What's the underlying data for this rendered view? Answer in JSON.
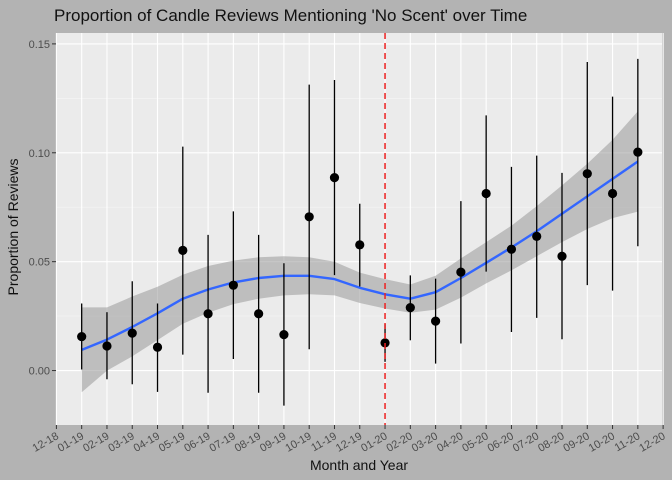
{
  "chart_data": {
    "type": "scatter",
    "title": "Proportion of Candle Reviews Mentioning 'No Scent' over Time",
    "xlabel": "Month and Year",
    "ylabel": "Proportion of Reviews",
    "x_ticks": [
      "12-18",
      "01-19",
      "02-19",
      "03-19",
      "04-19",
      "05-19",
      "06-19",
      "07-19",
      "08-19",
      "09-19",
      "10-19",
      "11-19",
      "12-19",
      "01-20",
      "02-20",
      "03-20",
      "04-20",
      "05-20",
      "06-20",
      "07-20",
      "08-20",
      "09-20",
      "10-20",
      "11-20",
      "12-20"
    ],
    "y_ticks": [
      "0.00",
      "0.05",
      "0.10",
      "0.15"
    ],
    "ylim": [
      -0.025,
      0.155
    ],
    "grid": true,
    "legend": "none",
    "colors": {
      "points": "#000000",
      "smooth_line": "#3366ff",
      "ribbon": "#999999",
      "vline": "#ee2222",
      "panel": "#ebebeb"
    },
    "points": [
      {
        "x": "01-19",
        "y": 0.0156,
        "lo": 0.0005,
        "hi": 0.0308
      },
      {
        "x": "02-19",
        "y": 0.0113,
        "lo": -0.004,
        "hi": 0.0268
      },
      {
        "x": "03-19",
        "y": 0.0172,
        "lo": -0.0063,
        "hi": 0.041
      },
      {
        "x": "04-19",
        "y": 0.0107,
        "lo": -0.0098,
        "hi": 0.0308
      },
      {
        "x": "05-19",
        "y": 0.0552,
        "lo": 0.0073,
        "hi": 0.1028
      },
      {
        "x": "06-19",
        "y": 0.0261,
        "lo": -0.0102,
        "hi": 0.0623
      },
      {
        "x": "07-19",
        "y": 0.0392,
        "lo": 0.0053,
        "hi": 0.0731
      },
      {
        "x": "08-19",
        "y": 0.0261,
        "lo": -0.0102,
        "hi": 0.0623
      },
      {
        "x": "09-19",
        "y": 0.0165,
        "lo": -0.0161,
        "hi": 0.0493
      },
      {
        "x": "10-19",
        "y": 0.0706,
        "lo": 0.0098,
        "hi": 0.1313
      },
      {
        "x": "11-19",
        "y": 0.0886,
        "lo": 0.0438,
        "hi": 0.1334
      },
      {
        "x": "12-19",
        "y": 0.0577,
        "lo": 0.0386,
        "hi": 0.0766
      },
      {
        "x": "01-20",
        "y": 0.0127,
        "lo": 0.004,
        "hi": 0.0213
      },
      {
        "x": "02-20",
        "y": 0.0289,
        "lo": 0.0139,
        "hi": 0.0437
      },
      {
        "x": "03-20",
        "y": 0.0227,
        "lo": 0.0032,
        "hi": 0.0422
      },
      {
        "x": "04-20",
        "y": 0.0452,
        "lo": 0.0124,
        "hi": 0.0778
      },
      {
        "x": "05-20",
        "y": 0.0813,
        "lo": 0.0454,
        "hi": 0.1172
      },
      {
        "x": "06-20",
        "y": 0.0557,
        "lo": 0.0177,
        "hi": 0.0935
      },
      {
        "x": "07-20",
        "y": 0.0616,
        "lo": 0.0242,
        "hi": 0.0987
      },
      {
        "x": "08-20",
        "y": 0.0525,
        "lo": 0.0144,
        "hi": 0.0908
      },
      {
        "x": "09-20",
        "y": 0.0904,
        "lo": 0.0392,
        "hi": 0.1417
      },
      {
        "x": "10-20",
        "y": 0.0813,
        "lo": 0.0367,
        "hi": 0.1258
      },
      {
        "x": "11-20",
        "y": 0.1003,
        "lo": 0.0571,
        "hi": 0.1431
      }
    ],
    "vline_x": "01-20",
    "smooth": [
      {
        "x": "01-19",
        "y": 0.0095,
        "lo": -0.01,
        "hi": 0.029
      },
      {
        "x": "02-19",
        "y": 0.0142,
        "lo": 0.0,
        "hi": 0.029
      },
      {
        "x": "03-19",
        "y": 0.02,
        "lo": 0.0065,
        "hi": 0.034
      },
      {
        "x": "04-19",
        "y": 0.0263,
        "lo": 0.014,
        "hi": 0.0385
      },
      {
        "x": "05-19",
        "y": 0.033,
        "lo": 0.0215,
        "hi": 0.044
      },
      {
        "x": "06-19",
        "y": 0.0372,
        "lo": 0.0265,
        "hi": 0.048
      },
      {
        "x": "07-19",
        "y": 0.0405,
        "lo": 0.0305,
        "hi": 0.0505
      },
      {
        "x": "08-19",
        "y": 0.0425,
        "lo": 0.033,
        "hi": 0.052
      },
      {
        "x": "09-19",
        "y": 0.0435,
        "lo": 0.0345,
        "hi": 0.0525
      },
      {
        "x": "10-19",
        "y": 0.0435,
        "lo": 0.035,
        "hi": 0.052
      },
      {
        "x": "11-19",
        "y": 0.042,
        "lo": 0.0345,
        "hi": 0.05
      },
      {
        "x": "12-19",
        "y": 0.038,
        "lo": 0.031,
        "hi": 0.045
      },
      {
        "x": "01-20",
        "y": 0.035,
        "lo": 0.0285,
        "hi": 0.042
      },
      {
        "x": "02-20",
        "y": 0.033,
        "lo": 0.0265,
        "hi": 0.0395
      },
      {
        "x": "03-20",
        "y": 0.036,
        "lo": 0.028,
        "hi": 0.0435
      },
      {
        "x": "04-20",
        "y": 0.0425,
        "lo": 0.0335,
        "hi": 0.0515
      },
      {
        "x": "05-20",
        "y": 0.0495,
        "lo": 0.04,
        "hi": 0.059
      },
      {
        "x": "06-20",
        "y": 0.0565,
        "lo": 0.046,
        "hi": 0.0665
      },
      {
        "x": "07-20",
        "y": 0.064,
        "lo": 0.0525,
        "hi": 0.0755
      },
      {
        "x": "08-20",
        "y": 0.072,
        "lo": 0.059,
        "hi": 0.085
      },
      {
        "x": "09-20",
        "y": 0.08,
        "lo": 0.065,
        "hi": 0.095
      },
      {
        "x": "10-20",
        "y": 0.088,
        "lo": 0.07,
        "hi": 0.106
      },
      {
        "x": "11-20",
        "y": 0.096,
        "lo": 0.073,
        "hi": 0.119
      }
    ]
  }
}
